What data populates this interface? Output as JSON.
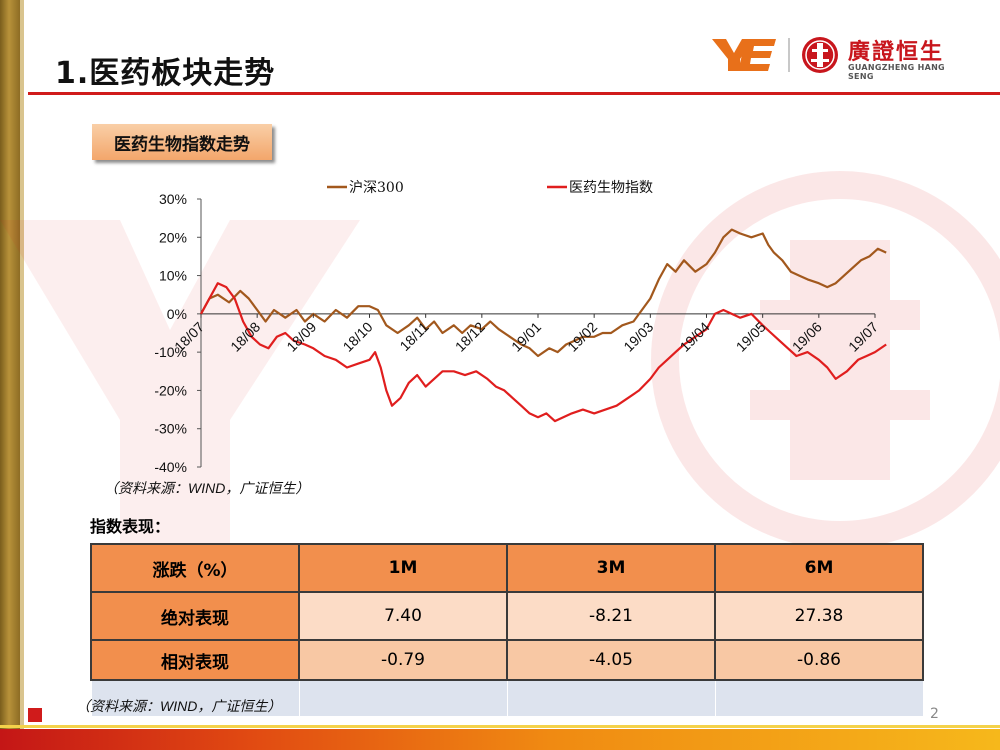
{
  "header": {
    "title": "1.医药板块走势",
    "logo": {
      "name_cn": "廣證恒生",
      "name_en": "GUANGZHENG HANG SENG",
      "mark": "YE"
    }
  },
  "section": {
    "label": "医药生物指数走势"
  },
  "chart_data": {
    "type": "line",
    "title": "",
    "xlabel": "",
    "ylabel": "",
    "ylim": [
      -40,
      30
    ],
    "yticks": [
      "30%",
      "20%",
      "10%",
      "0%",
      "-10%",
      "-20%",
      "-30%",
      "-40%"
    ],
    "categories": [
      "18/07",
      "18/08",
      "18/09",
      "18/10",
      "18/11",
      "18/12",
      "19/01",
      "19/02",
      "19/03",
      "19/04",
      "19/05",
      "19/06",
      "19/07"
    ],
    "legend_position": "top",
    "series": [
      {
        "name": "沪深300",
        "color": "#a2581d",
        "points": [
          [
            0,
            0
          ],
          [
            0.15,
            4
          ],
          [
            0.3,
            5
          ],
          [
            0.5,
            3
          ],
          [
            0.7,
            6
          ],
          [
            0.85,
            4
          ],
          [
            1.0,
            1
          ],
          [
            1.15,
            -2
          ],
          [
            1.3,
            1
          ],
          [
            1.5,
            -1
          ],
          [
            1.7,
            1
          ],
          [
            1.85,
            -2
          ],
          [
            2.0,
            0
          ],
          [
            2.2,
            -2
          ],
          [
            2.4,
            1
          ],
          [
            2.6,
            -1
          ],
          [
            2.8,
            2
          ],
          [
            3.0,
            2
          ],
          [
            3.15,
            1
          ],
          [
            3.3,
            -3
          ],
          [
            3.5,
            -5
          ],
          [
            3.7,
            -3
          ],
          [
            3.85,
            -1
          ],
          [
            4.0,
            -4
          ],
          [
            4.15,
            -2
          ],
          [
            4.3,
            -5
          ],
          [
            4.5,
            -3
          ],
          [
            4.65,
            -5
          ],
          [
            4.8,
            -3
          ],
          [
            5.0,
            -4
          ],
          [
            5.15,
            -2
          ],
          [
            5.3,
            -4
          ],
          [
            5.5,
            -6
          ],
          [
            5.7,
            -8
          ],
          [
            5.85,
            -9
          ],
          [
            6.0,
            -11
          ],
          [
            6.2,
            -9
          ],
          [
            6.35,
            -10
          ],
          [
            6.5,
            -8
          ],
          [
            6.65,
            -7
          ],
          [
            6.8,
            -6
          ],
          [
            7.0,
            -6
          ],
          [
            7.15,
            -5
          ],
          [
            7.3,
            -5
          ],
          [
            7.5,
            -3
          ],
          [
            7.7,
            -2
          ],
          [
            7.85,
            1
          ],
          [
            8.0,
            4
          ],
          [
            8.15,
            9
          ],
          [
            8.3,
            13
          ],
          [
            8.45,
            11
          ],
          [
            8.6,
            14
          ],
          [
            8.8,
            11
          ],
          [
            9.0,
            13
          ],
          [
            9.15,
            16
          ],
          [
            9.3,
            20
          ],
          [
            9.45,
            22
          ],
          [
            9.6,
            21
          ],
          [
            9.8,
            20
          ],
          [
            10.0,
            21
          ],
          [
            10.1,
            18
          ],
          [
            10.2,
            16
          ],
          [
            10.35,
            14
          ],
          [
            10.5,
            11
          ],
          [
            10.65,
            10
          ],
          [
            10.8,
            9
          ],
          [
            11.0,
            8
          ],
          [
            11.15,
            7
          ],
          [
            11.3,
            8
          ],
          [
            11.45,
            10
          ],
          [
            11.6,
            12
          ],
          [
            11.75,
            14
          ],
          [
            11.9,
            15
          ],
          [
            12.05,
            17
          ],
          [
            12.2,
            16
          ]
        ]
      },
      {
        "name": "医药生物指数",
        "color": "#e01e1e",
        "points": [
          [
            0,
            0
          ],
          [
            0.15,
            4
          ],
          [
            0.3,
            8
          ],
          [
            0.45,
            7
          ],
          [
            0.6,
            4
          ],
          [
            0.75,
            -2
          ],
          [
            0.9,
            -6
          ],
          [
            1.05,
            -8
          ],
          [
            1.2,
            -9
          ],
          [
            1.35,
            -6
          ],
          [
            1.5,
            -5
          ],
          [
            1.65,
            -7
          ],
          [
            1.85,
            -8
          ],
          [
            2.0,
            -9
          ],
          [
            2.2,
            -11
          ],
          [
            2.4,
            -12
          ],
          [
            2.6,
            -14
          ],
          [
            2.8,
            -13
          ],
          [
            3.0,
            -12
          ],
          [
            3.1,
            -10
          ],
          [
            3.2,
            -14
          ],
          [
            3.3,
            -20
          ],
          [
            3.4,
            -24
          ],
          [
            3.55,
            -22
          ],
          [
            3.7,
            -18
          ],
          [
            3.85,
            -16
          ],
          [
            4.0,
            -19
          ],
          [
            4.15,
            -17
          ],
          [
            4.3,
            -15
          ],
          [
            4.5,
            -15
          ],
          [
            4.7,
            -16
          ],
          [
            4.9,
            -15
          ],
          [
            5.1,
            -17
          ],
          [
            5.25,
            -19
          ],
          [
            5.4,
            -20
          ],
          [
            5.55,
            -22
          ],
          [
            5.7,
            -24
          ],
          [
            5.85,
            -26
          ],
          [
            6.0,
            -27
          ],
          [
            6.15,
            -26
          ],
          [
            6.3,
            -28
          ],
          [
            6.45,
            -27
          ],
          [
            6.6,
            -26
          ],
          [
            6.8,
            -25
          ],
          [
            7.0,
            -26
          ],
          [
            7.2,
            -25
          ],
          [
            7.4,
            -24
          ],
          [
            7.6,
            -22
          ],
          [
            7.8,
            -20
          ],
          [
            8.0,
            -17
          ],
          [
            8.15,
            -14
          ],
          [
            8.3,
            -12
          ],
          [
            8.45,
            -10
          ],
          [
            8.6,
            -8
          ],
          [
            8.8,
            -6
          ],
          [
            9.0,
            -4
          ],
          [
            9.15,
            0
          ],
          [
            9.3,
            1
          ],
          [
            9.45,
            0
          ],
          [
            9.6,
            -1
          ],
          [
            9.8,
            0
          ],
          [
            10.0,
            -3
          ],
          [
            10.15,
            -5
          ],
          [
            10.3,
            -7
          ],
          [
            10.45,
            -9
          ],
          [
            10.6,
            -11
          ],
          [
            10.8,
            -10
          ],
          [
            11.0,
            -12
          ],
          [
            11.15,
            -14
          ],
          [
            11.3,
            -17
          ],
          [
            11.5,
            -15
          ],
          [
            11.7,
            -12
          ],
          [
            11.85,
            -11
          ],
          [
            12.0,
            -10
          ],
          [
            12.2,
            -8
          ]
        ]
      }
    ]
  },
  "notes": {
    "chart_source": "（资料来源：WIND，广证恒生）",
    "table_source": "（资料来源：WIND，广证恒生）"
  },
  "performance": {
    "label": "指数表现：",
    "headers": [
      "涨跌（%）",
      "1M",
      "3M",
      "6M"
    ],
    "rows": [
      {
        "label": "绝对表现",
        "values": [
          "7.40",
          "-8.21",
          "27.38"
        ]
      },
      {
        "label": "相对表现",
        "values": [
          "-0.79",
          "-4.05",
          "-0.86"
        ]
      }
    ]
  },
  "footer": {
    "page_number": "2"
  }
}
